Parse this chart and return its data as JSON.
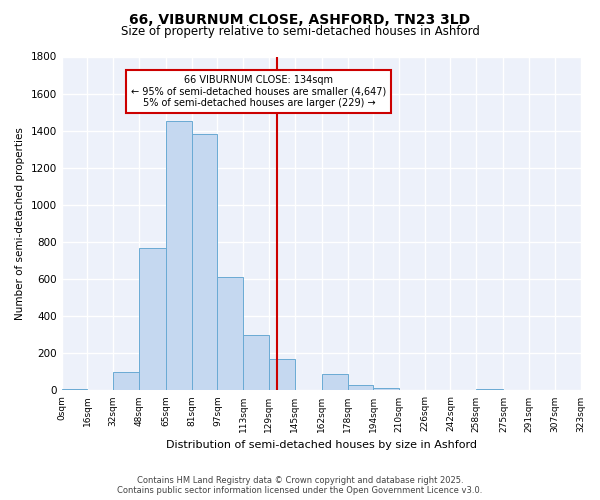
{
  "title": "66, VIBURNUM CLOSE, ASHFORD, TN23 3LD",
  "subtitle": "Size of property relative to semi-detached houses in Ashford",
  "xlabel": "Distribution of semi-detached houses by size in Ashford",
  "ylabel": "Number of semi-detached properties",
  "bar_edges": [
    0,
    16,
    32,
    48,
    65,
    81,
    97,
    113,
    129,
    145,
    162,
    178,
    194,
    210,
    226,
    242,
    258,
    275,
    291,
    307,
    323
  ],
  "bar_heights": [
    10,
    0,
    100,
    770,
    1450,
    1380,
    610,
    300,
    170,
    0,
    90,
    30,
    15,
    0,
    0,
    0,
    10,
    0,
    0,
    0
  ],
  "bar_color": "#c5d8f0",
  "bar_edge_color": "#6aaad4",
  "vline_x": 134,
  "vline_color": "#cc0000",
  "annotation_text": "66 VIBURNUM CLOSE: 134sqm\n← 95% of semi-detached houses are smaller (4,647)\n5% of semi-detached houses are larger (229) →",
  "annotation_box_color": "#ffffff",
  "annotation_box_edge_color": "#cc0000",
  "footnote_line1": "Contains HM Land Registry data © Crown copyright and database right 2025.",
  "footnote_line2": "Contains public sector information licensed under the Open Government Licence v3.0.",
  "bg_color": "#ffffff",
  "plot_bg_color": "#edf1fa",
  "grid_color": "#ffffff",
  "ylim": [
    0,
    1800
  ],
  "tick_labels": [
    "0sqm",
    "16sqm",
    "32sqm",
    "48sqm",
    "65sqm",
    "81sqm",
    "97sqm",
    "113sqm",
    "129sqm",
    "145sqm",
    "162sqm",
    "178sqm",
    "194sqm",
    "210sqm",
    "226sqm",
    "242sqm",
    "258sqm",
    "275sqm",
    "291sqm",
    "307sqm",
    "323sqm"
  ],
  "yticks": [
    0,
    200,
    400,
    600,
    800,
    1000,
    1200,
    1400,
    1600,
    1800
  ]
}
